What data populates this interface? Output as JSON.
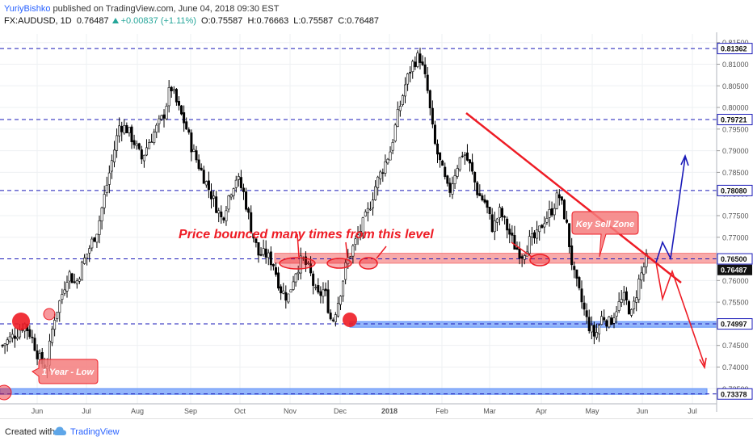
{
  "header": {
    "author": "YuriyBishko",
    "published": "published on TradingView.com, June 04, 2018 09:30 EST",
    "symbol": "FX:AUDUSD, 1D",
    "last": "0.76487",
    "change": "+0.00837 (+1.11%)",
    "open": "O:0.75587",
    "high": "H:0.76663",
    "low": "L:0.75587",
    "close": "C:0.76487"
  },
  "footer": {
    "created_with": "Created with",
    "brand": "TradingView"
  },
  "colors": {
    "up": "#26a69a",
    "accent": "#2962ff",
    "annotation": "#ee1c25",
    "zone_red": "#f47c7c",
    "zone_blue": "#5b8ff9",
    "level_line": "#1a1ab8"
  },
  "chart_data": {
    "type": "candlestick",
    "instrument": "FX:AUDUSD",
    "timeframe": "1D",
    "ylim": [
      0.7315,
      0.817
    ],
    "x_ticks": [
      "Jun",
      "Jul",
      "Aug",
      "Sep",
      "Oct",
      "Nov",
      "Dec",
      "2018",
      "Feb",
      "Mar",
      "Apr",
      "May",
      "Jun",
      "Jul"
    ],
    "y_ticks": [
      "0.81500",
      "0.81000",
      "0.80500",
      "0.80000",
      "0.79500",
      "0.79000",
      "0.78500",
      "0.78000",
      "0.77500",
      "0.77000",
      "0.76000",
      "0.75500",
      "0.74500",
      "0.74000",
      "0.73500"
    ],
    "price_path": [
      [
        0,
        0.745
      ],
      [
        2,
        0.748
      ],
      [
        3,
        0.75
      ],
      [
        4,
        0.747
      ],
      [
        5,
        0.742
      ],
      [
        6,
        0.7395
      ],
      [
        7,
        0.751
      ],
      [
        8,
        0.756
      ],
      [
        9,
        0.762
      ],
      [
        10,
        0.759
      ],
      [
        11,
        0.764
      ],
      [
        12,
        0.768
      ],
      [
        13,
        0.772
      ],
      [
        14,
        0.78
      ],
      [
        15,
        0.788
      ],
      [
        16,
        0.796
      ],
      [
        17,
        0.795
      ],
      [
        18,
        0.792
      ],
      [
        19,
        0.788
      ],
      [
        20,
        0.792
      ],
      [
        21,
        0.795
      ],
      [
        22,
        0.798
      ],
      [
        23,
        0.805
      ],
      [
        24,
        0.8
      ],
      [
        25,
        0.796
      ],
      [
        26,
        0.79
      ],
      [
        27,
        0.786
      ],
      [
        28,
        0.782
      ],
      [
        29,
        0.778
      ],
      [
        30,
        0.774
      ],
      [
        31,
        0.78
      ],
      [
        32,
        0.784
      ],
      [
        33,
        0.78
      ],
      [
        34,
        0.772
      ],
      [
        35,
        0.766
      ],
      [
        36,
        0.766
      ],
      [
        37,
        0.764
      ],
      [
        38,
        0.758
      ],
      [
        39,
        0.756
      ],
      [
        40,
        0.762
      ],
      [
        41,
        0.765
      ],
      [
        42,
        0.762
      ],
      [
        43,
        0.756
      ],
      [
        44,
        0.758
      ],
      [
        45,
        0.75
      ],
      [
        46,
        0.756
      ],
      [
        47,
        0.764
      ],
      [
        48,
        0.768
      ],
      [
        49,
        0.772
      ],
      [
        50,
        0.776
      ],
      [
        51,
        0.782
      ],
      [
        52,
        0.786
      ],
      [
        53,
        0.79
      ],
      [
        54,
        0.798
      ],
      [
        55,
        0.805
      ],
      [
        56,
        0.81
      ],
      [
        57,
        0.812
      ],
      [
        58,
        0.805
      ],
      [
        59,
        0.792
      ],
      [
        60,
        0.786
      ],
      [
        61,
        0.78
      ],
      [
        62,
        0.786
      ],
      [
        63,
        0.79
      ],
      [
        64,
        0.786
      ],
      [
        65,
        0.78
      ],
      [
        66,
        0.778
      ],
      [
        67,
        0.772
      ],
      [
        68,
        0.776
      ],
      [
        69,
        0.772
      ],
      [
        70,
        0.768
      ],
      [
        71,
        0.766
      ],
      [
        72,
        0.769
      ],
      [
        73,
        0.77
      ],
      [
        74,
        0.774
      ],
      [
        75,
        0.776
      ],
      [
        76,
        0.78
      ],
      [
        77,
        0.774
      ],
      [
        78,
        0.762
      ],
      [
        79,
        0.756
      ],
      [
        80,
        0.75
      ],
      [
        81,
        0.747
      ],
      [
        82,
        0.752
      ],
      [
        83,
        0.75
      ],
      [
        84,
        0.754
      ],
      [
        85,
        0.756
      ],
      [
        86,
        0.752
      ],
      [
        87,
        0.76
      ],
      [
        88,
        0.7648
      ]
    ],
    "levels": [
      {
        "label": "0.81362",
        "value": 0.81362
      },
      {
        "label": "0.79721",
        "value": 0.79721
      },
      {
        "label": "0.78080",
        "value": 0.7808
      },
      {
        "label": "0.76500",
        "value": 0.765
      },
      {
        "label": "0.74997",
        "value": 0.74997
      },
      {
        "label": "0.73378",
        "value": 0.73378
      }
    ],
    "last_price": {
      "label": "0.76487",
      "value": 0.76487
    },
    "zones": [
      {
        "name": "resistance-zone",
        "from": 0.764,
        "to": 0.7663,
        "color": "#f47c7c"
      },
      {
        "name": "support-zone",
        "from": 0.7492,
        "to": 0.7505,
        "color": "#5b8ff9"
      },
      {
        "name": "low-zone",
        "from": 0.7337,
        "to": 0.735,
        "color": "#5b8ff9"
      }
    ],
    "annotations": {
      "main_text": "Price bounced many times from this level",
      "key_sell_zone": "Key Sell Zone",
      "year_low": "1 Year - Low"
    }
  }
}
